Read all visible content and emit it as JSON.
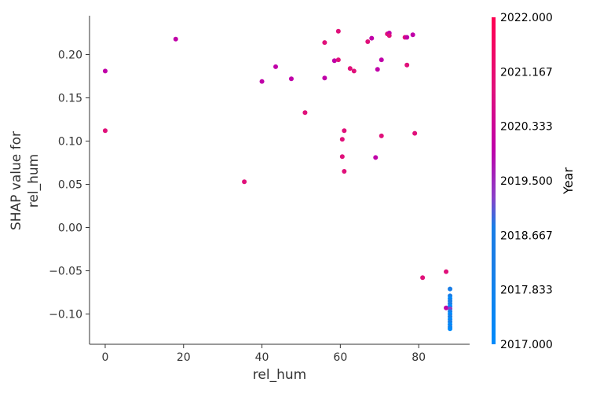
{
  "chart_data": {
    "type": "scatter",
    "title": "",
    "xlabel": "rel_hum",
    "ylabel": [
      "SHAP value for",
      "rel_hum"
    ],
    "xlim": [
      -4,
      93
    ],
    "ylim": [
      -0.135,
      0.245
    ],
    "xticks": [
      0,
      20,
      40,
      60,
      80
    ],
    "xtick_labels": [
      "0",
      "20",
      "40",
      "60",
      "80"
    ],
    "yticks": [
      0.2,
      0.15,
      0.1,
      0.05,
      0.0,
      -0.05,
      -0.1
    ],
    "ytick_labels": [
      "0.20",
      "0.15",
      "0.10",
      "0.05",
      "0.00",
      "−0.05",
      "−0.10"
    ],
    "grid": false,
    "colorbar": {
      "title": "Year",
      "range": [
        2017.0,
        2022.0
      ],
      "ticks": [
        2022.0,
        2021.167,
        2020.333,
        2019.5,
        2018.667,
        2017.833,
        2017.0
      ],
      "tick_labels": [
        "2022.000",
        "2021.167",
        "2020.333",
        "2019.500",
        "2018.667",
        "2017.833",
        "2017.000"
      ],
      "colors": {
        "2017": "#008afb",
        "2018": "#1a7ee6",
        "2019": "#8a3fc8",
        "2020": "#c000a8",
        "2021": "#e0107a",
        "2022": "#ff0052"
      }
    },
    "points": [
      {
        "x": 0,
        "y": 0.181,
        "year": 2020
      },
      {
        "x": 0,
        "y": 0.112,
        "year": 2021
      },
      {
        "x": 18,
        "y": 0.218,
        "year": 2020
      },
      {
        "x": 35.5,
        "y": 0.053,
        "year": 2021
      },
      {
        "x": 40,
        "y": 0.169,
        "year": 2020
      },
      {
        "x": 43.5,
        "y": 0.186,
        "year": 2020
      },
      {
        "x": 47.5,
        "y": 0.172,
        "year": 2020
      },
      {
        "x": 51,
        "y": 0.133,
        "year": 2021
      },
      {
        "x": 56,
        "y": 0.214,
        "year": 2021
      },
      {
        "x": 56,
        "y": 0.173,
        "year": 2020
      },
      {
        "x": 58.5,
        "y": 0.193,
        "year": 2020
      },
      {
        "x": 59.5,
        "y": 0.227,
        "year": 2021
      },
      {
        "x": 59.5,
        "y": 0.194,
        "year": 2021
      },
      {
        "x": 60.5,
        "y": 0.102,
        "year": 2021
      },
      {
        "x": 60.5,
        "y": 0.082,
        "year": 2021
      },
      {
        "x": 61,
        "y": 0.112,
        "year": 2021
      },
      {
        "x": 61,
        "y": 0.065,
        "year": 2021
      },
      {
        "x": 62.5,
        "y": 0.184,
        "year": 2021
      },
      {
        "x": 63.5,
        "y": 0.181,
        "year": 2021
      },
      {
        "x": 67,
        "y": 0.215,
        "year": 2021
      },
      {
        "x": 68,
        "y": 0.219,
        "year": 2020
      },
      {
        "x": 69,
        "y": 0.081,
        "year": 2020
      },
      {
        "x": 69.5,
        "y": 0.183,
        "year": 2020
      },
      {
        "x": 70.5,
        "y": 0.106,
        "year": 2021
      },
      {
        "x": 70.5,
        "y": 0.194,
        "year": 2020
      },
      {
        "x": 72,
        "y": 0.224,
        "year": 2021
      },
      {
        "x": 72.5,
        "y": 0.225,
        "year": 2020
      },
      {
        "x": 72.5,
        "y": 0.222,
        "year": 2021
      },
      {
        "x": 76.5,
        "y": 0.22,
        "year": 2021
      },
      {
        "x": 77,
        "y": 0.22,
        "year": 2020
      },
      {
        "x": 77,
        "y": 0.188,
        "year": 2021
      },
      {
        "x": 78.5,
        "y": 0.223,
        "year": 2020
      },
      {
        "x": 79,
        "y": 0.109,
        "year": 2021
      },
      {
        "x": 81,
        "y": -0.058,
        "year": 2021
      },
      {
        "x": 87,
        "y": -0.051,
        "year": 2021
      },
      {
        "x": 87,
        "y": -0.093,
        "year": 2020
      },
      {
        "x": 88,
        "y": -0.071,
        "year": 2018
      },
      {
        "x": 88,
        "y": -0.079,
        "year": 2018
      },
      {
        "x": 88,
        "y": -0.082,
        "year": 2017
      },
      {
        "x": 88,
        "y": -0.085,
        "year": 2018
      },
      {
        "x": 88,
        "y": -0.088,
        "year": 2018
      },
      {
        "x": 88,
        "y": -0.091,
        "year": 2017
      },
      {
        "x": 88,
        "y": -0.094,
        "year": 2019
      },
      {
        "x": 88,
        "y": -0.097,
        "year": 2018
      },
      {
        "x": 88,
        "y": -0.1,
        "year": 2017
      },
      {
        "x": 88,
        "y": -0.103,
        "year": 2018
      },
      {
        "x": 88,
        "y": -0.106,
        "year": 2017
      },
      {
        "x": 88,
        "y": -0.109,
        "year": 2018
      },
      {
        "x": 88,
        "y": -0.112,
        "year": 2017
      },
      {
        "x": 88,
        "y": -0.115,
        "year": 2018
      },
      {
        "x": 88,
        "y": -0.117,
        "year": 2017
      }
    ]
  }
}
